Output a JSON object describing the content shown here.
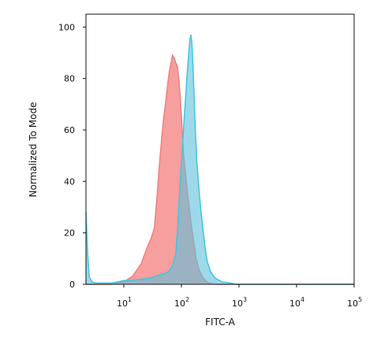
{
  "chart_data": {
    "type": "area",
    "title": "",
    "xlabel": "FITC-A",
    "ylabel": "Normalized To Mode",
    "x_scale": "log",
    "x_range": [
      2.2,
      100000
    ],
    "ylim": [
      0,
      105
    ],
    "grid": false,
    "legend": "none",
    "x_ticks": [
      {
        "value": 10,
        "base": "10",
        "exp": "1"
      },
      {
        "value": 100,
        "base": "10",
        "exp": "2"
      },
      {
        "value": 1000,
        "base": "10",
        "exp": "3"
      },
      {
        "value": 10000,
        "base": "10",
        "exp": "4"
      },
      {
        "value": 100000,
        "base": "10",
        "exp": "5"
      }
    ],
    "y_ticks": [
      {
        "value": 0,
        "label": "0"
      },
      {
        "value": 20,
        "label": "20"
      },
      {
        "value": 40,
        "label": "40"
      },
      {
        "value": 60,
        "label": "60"
      },
      {
        "value": 80,
        "label": "80"
      },
      {
        "value": 100,
        "label": "100"
      }
    ],
    "series": [
      {
        "color": "#f08080",
        "fill": "#f47e7e",
        "points": [
          [
            2.2,
            0
          ],
          [
            6,
            0
          ],
          [
            8,
            0.5
          ],
          [
            10,
            1
          ],
          [
            14,
            3
          ],
          [
            20,
            8
          ],
          [
            25,
            14
          ],
          [
            30,
            18
          ],
          [
            34,
            22
          ],
          [
            38,
            35
          ],
          [
            42,
            48
          ],
          [
            46,
            58
          ],
          [
            50,
            66
          ],
          [
            54,
            72
          ],
          [
            58,
            78
          ],
          [
            62,
            83
          ],
          [
            66,
            86
          ],
          [
            70,
            89
          ],
          [
            75,
            88
          ],
          [
            80,
            86
          ],
          [
            85,
            85
          ],
          [
            90,
            80
          ],
          [
            96,
            72
          ],
          [
            102,
            62
          ],
          [
            108,
            52
          ],
          [
            115,
            45
          ],
          [
            122,
            40
          ],
          [
            130,
            34
          ],
          [
            140,
            28
          ],
          [
            150,
            22
          ],
          [
            165,
            16
          ],
          [
            180,
            10
          ],
          [
            200,
            6
          ],
          [
            230,
            3
          ],
          [
            260,
            1.5
          ],
          [
            300,
            0.5
          ],
          [
            400,
            0
          ],
          [
            100000,
            0
          ]
        ]
      },
      {
        "color": "#3ec6e0",
        "fill": "#5dbfdb",
        "points": [
          [
            2.2,
            28
          ],
          [
            2.35,
            12
          ],
          [
            2.5,
            3
          ],
          [
            2.8,
            1
          ],
          [
            3.2,
            0.5
          ],
          [
            6,
            0.5
          ],
          [
            8,
            1
          ],
          [
            10,
            1.5
          ],
          [
            14,
            1.5
          ],
          [
            20,
            2
          ],
          [
            30,
            2.5
          ],
          [
            40,
            3.5
          ],
          [
            50,
            4
          ],
          [
            60,
            5
          ],
          [
            70,
            7
          ],
          [
            80,
            12
          ],
          [
            88,
            25
          ],
          [
            95,
            40
          ],
          [
            102,
            50
          ],
          [
            110,
            62
          ],
          [
            118,
            72
          ],
          [
            126,
            82
          ],
          [
            134,
            90
          ],
          [
            140,
            95
          ],
          [
            146,
            97
          ],
          [
            152,
            94
          ],
          [
            158,
            86
          ],
          [
            165,
            75
          ],
          [
            175,
            60
          ],
          [
            185,
            48
          ],
          [
            200,
            38
          ],
          [
            215,
            30
          ],
          [
            235,
            22
          ],
          [
            255,
            15
          ],
          [
            280,
            9
          ],
          [
            320,
            5
          ],
          [
            380,
            2.5
          ],
          [
            500,
            1
          ],
          [
            700,
            0.5
          ],
          [
            900,
            0
          ],
          [
            100000,
            0
          ]
        ]
      }
    ]
  }
}
